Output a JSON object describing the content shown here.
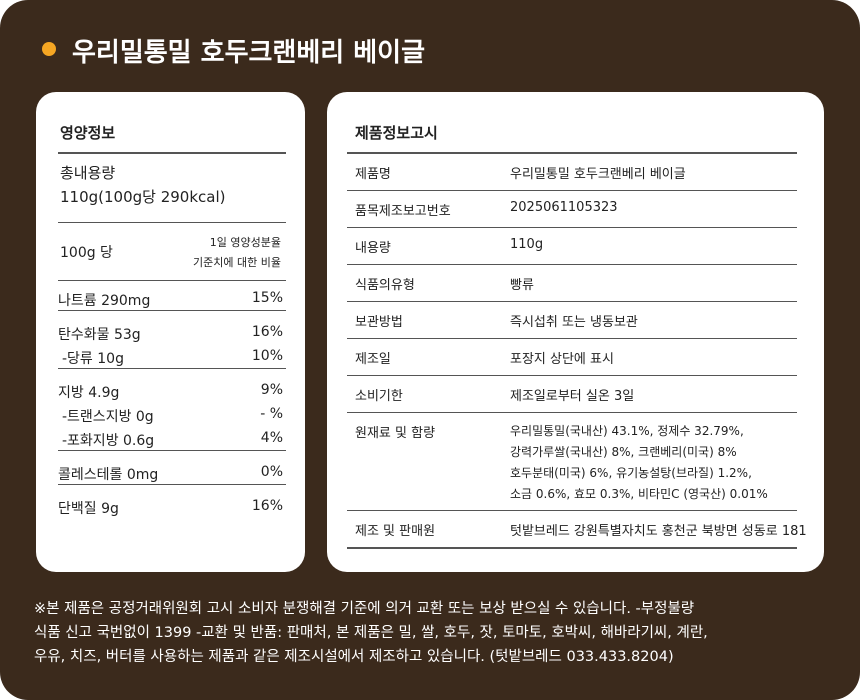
{
  "title": "우리밀통밀 호두크랜베리 베이글",
  "nutrition": {
    "heading": "영양정보",
    "total_label": "총내용량",
    "total_value": "110g(100g당 290kcal)",
    "per": "100g 당",
    "daily_note": [
      "1일 영양성분율",
      "기준치에 대한 비율"
    ],
    "groups": [
      [
        {
          "label": "나트륨 290mg",
          "percent": "15%"
        }
      ],
      [
        {
          "label": "탄수화물 53g",
          "percent": "16%"
        },
        {
          "label": "-당류  10g",
          "percent": "10%"
        }
      ],
      [
        {
          "label": "지방  4.9g",
          "percent": "9%"
        },
        {
          "label": "-트랜스지방 0g",
          "percent": "- %"
        },
        {
          "label": "-포화지방 0.6g",
          "percent": "4%"
        }
      ],
      [
        {
          "label": "콜레스테롤  0mg",
          "percent": "0%"
        }
      ],
      [
        {
          "label": "단백질 9g",
          "percent": "16%"
        }
      ]
    ]
  },
  "product_info": {
    "heading": "제품정보고시",
    "rows": [
      {
        "label": "제품명",
        "value": [
          "우리밀통밀 호두크랜베리 베이글"
        ]
      },
      {
        "label": "품목제조보고번호",
        "value": [
          "2025061105323"
        ]
      },
      {
        "label": "내용량",
        "value": [
          "110g"
        ]
      },
      {
        "label": "식품의유형",
        "value": [
          "빵류"
        ]
      },
      {
        "label": "보관방법",
        "value": [
          "즉시섭취 또는 냉동보관"
        ]
      },
      {
        "label": "제조일",
        "value": [
          "포장지 상단에 표시"
        ]
      },
      {
        "label": "소비기한",
        "value": [
          "제조일로부터 실온 3일"
        ]
      },
      {
        "label": "원재료 및 함량",
        "value": [
          "우리밀통밀(국내산) 43.1%, 정제수 32.79%,",
          "강력가루쌀(국내산) 8%, 크랜베리(미국) 8%",
          "호두분태(미국) 6%, 유기농설탕(브라질) 1.2%,",
          "소금 0.6%, 효모 0.3%, 비타민C (영국산) 0.01%"
        ]
      },
      {
        "label": "제조 및 판매원",
        "value": [
          "텃밭브레드  강원특별자치도 홍천군 북방면 성동로 181"
        ]
      }
    ]
  },
  "footer": [
    "※본 제품은 공정거래위원회 고시 소비자 분쟁해결 기준에 의거 교환 또는 보상 받으실 수 있습니다. -부정불량",
    "식품 신고 국번없이 1399 -교환 및 반품: 판매처, 본 제품은 밀, 쌀, 호두, 잣, 토마토, 호박씨, 해바라기씨, 계란,",
    "우유, 치즈, 버터를 사용하는 제품과 같은 제조시설에서 제조하고 있습니다. (텃밭브레드 033.433.8204)"
  ]
}
